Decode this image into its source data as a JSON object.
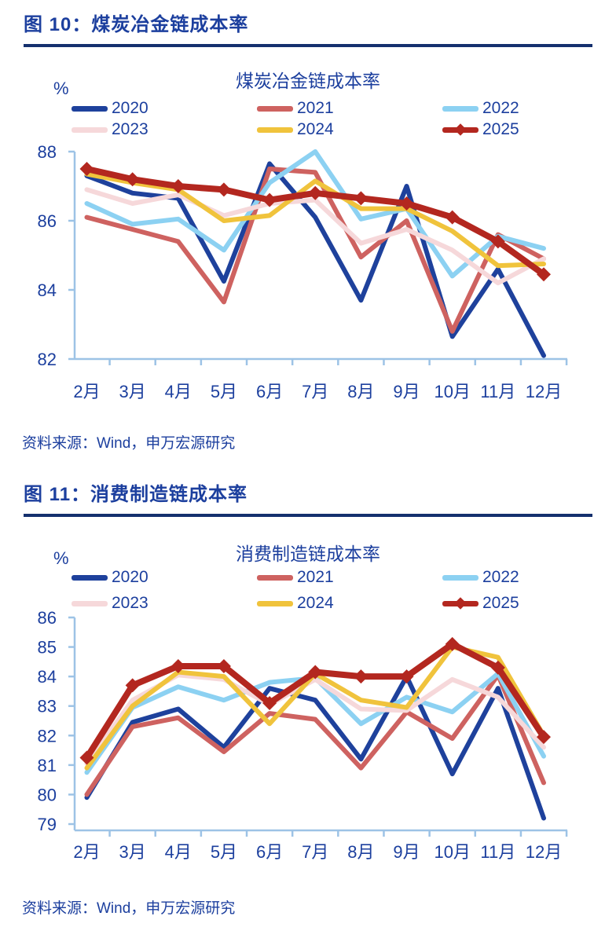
{
  "colors": {
    "text": "#1c3f9e",
    "axis": "#9dc3e6",
    "header_rule": "#15306e"
  },
  "figures": [
    {
      "header": "图 10：煤炭冶金链成本率",
      "title": "煤炭冶金链成本率",
      "unit_label": "%",
      "source": "资料来源：Wind，申万宏源研究"
    },
    {
      "header": "图 11：消费制造链成本率",
      "title": "消费制造链成本率",
      "unit_label": "%",
      "source": "资料来源：Wind，申万宏源研究"
    }
  ],
  "chart_data": [
    {
      "type": "line",
      "title": "煤炭冶金链成本率",
      "ylabel": "%",
      "categories": [
        "2月",
        "3月",
        "4月",
        "5月",
        "6月",
        "7月",
        "8月",
        "9月",
        "10月",
        "11月",
        "12月"
      ],
      "ylim": [
        82,
        88
      ],
      "yticks": [
        82,
        84,
        86,
        88
      ],
      "grid": false,
      "legend_position": "top",
      "series": [
        {
          "name": "2020",
          "color": "#1e419c",
          "values": [
            87.3,
            86.8,
            86.65,
            84.25,
            87.65,
            86.1,
            83.7,
            87.0,
            82.65,
            84.6,
            82.1
          ]
        },
        {
          "name": "2021",
          "color": "#ce6260",
          "values": [
            86.1,
            85.75,
            85.4,
            83.65,
            87.5,
            87.4,
            84.95,
            86.0,
            82.8,
            85.6,
            84.9
          ]
        },
        {
          "name": "2022",
          "color": "#8cd1f2",
          "values": [
            86.5,
            85.9,
            86.05,
            85.15,
            87.1,
            88.0,
            86.05,
            86.35,
            84.4,
            85.55,
            85.2
          ]
        },
        {
          "name": "2023",
          "color": "#f6d8da",
          "values": [
            86.9,
            86.5,
            86.75,
            86.15,
            86.5,
            86.6,
            85.35,
            85.75,
            85.15,
            84.2,
            84.9
          ]
        },
        {
          "name": "2024",
          "color": "#f0c33c",
          "values": [
            87.35,
            87.1,
            86.9,
            86.0,
            86.15,
            87.15,
            86.35,
            86.35,
            85.7,
            84.7,
            84.75
          ]
        },
        {
          "name": "2025",
          "color": "#b3271f",
          "marker": "diamond",
          "values": [
            87.5,
            87.2,
            87.0,
            86.9,
            86.6,
            86.8,
            86.65,
            86.5,
            86.1,
            85.4,
            84.45
          ]
        }
      ]
    },
    {
      "type": "line",
      "title": "消费制造链成本率",
      "ylabel": "%",
      "categories": [
        "2月",
        "3月",
        "4月",
        "5月",
        "6月",
        "7月",
        "8月",
        "9月",
        "10月",
        "11月",
        "12月"
      ],
      "ylim": [
        79,
        86
      ],
      "yticks": [
        79,
        80,
        81,
        82,
        83,
        84,
        85,
        86
      ],
      "grid": false,
      "legend_position": "top",
      "series": [
        {
          "name": "2020",
          "color": "#1e419c",
          "values": [
            79.9,
            82.45,
            82.9,
            81.6,
            83.6,
            83.2,
            81.2,
            84.0,
            80.7,
            83.6,
            79.2
          ]
        },
        {
          "name": "2021",
          "color": "#ce6260",
          "values": [
            80.0,
            82.3,
            82.6,
            81.45,
            82.75,
            82.55,
            80.9,
            82.8,
            81.9,
            84.05,
            80.4
          ]
        },
        {
          "name": "2022",
          "color": "#8cd1f2",
          "values": [
            80.75,
            82.95,
            83.65,
            83.2,
            83.8,
            83.95,
            82.4,
            83.3,
            82.8,
            84.1,
            81.3
          ]
        },
        {
          "name": "2023",
          "color": "#f6d8da",
          "values": [
            81.05,
            83.2,
            84.05,
            83.9,
            83.05,
            83.9,
            82.9,
            82.85,
            83.9,
            83.3,
            81.6
          ]
        },
        {
          "name": "2024",
          "color": "#f0c33c",
          "values": [
            80.9,
            83.0,
            84.15,
            84.0,
            82.4,
            84.1,
            83.2,
            82.95,
            85.0,
            84.65,
            82.0
          ]
        },
        {
          "name": "2025",
          "color": "#b3271f",
          "marker": "diamond",
          "values": [
            81.25,
            83.7,
            84.35,
            84.35,
            83.1,
            84.15,
            84.0,
            84.0,
            85.1,
            84.3,
            81.95
          ]
        }
      ]
    }
  ]
}
